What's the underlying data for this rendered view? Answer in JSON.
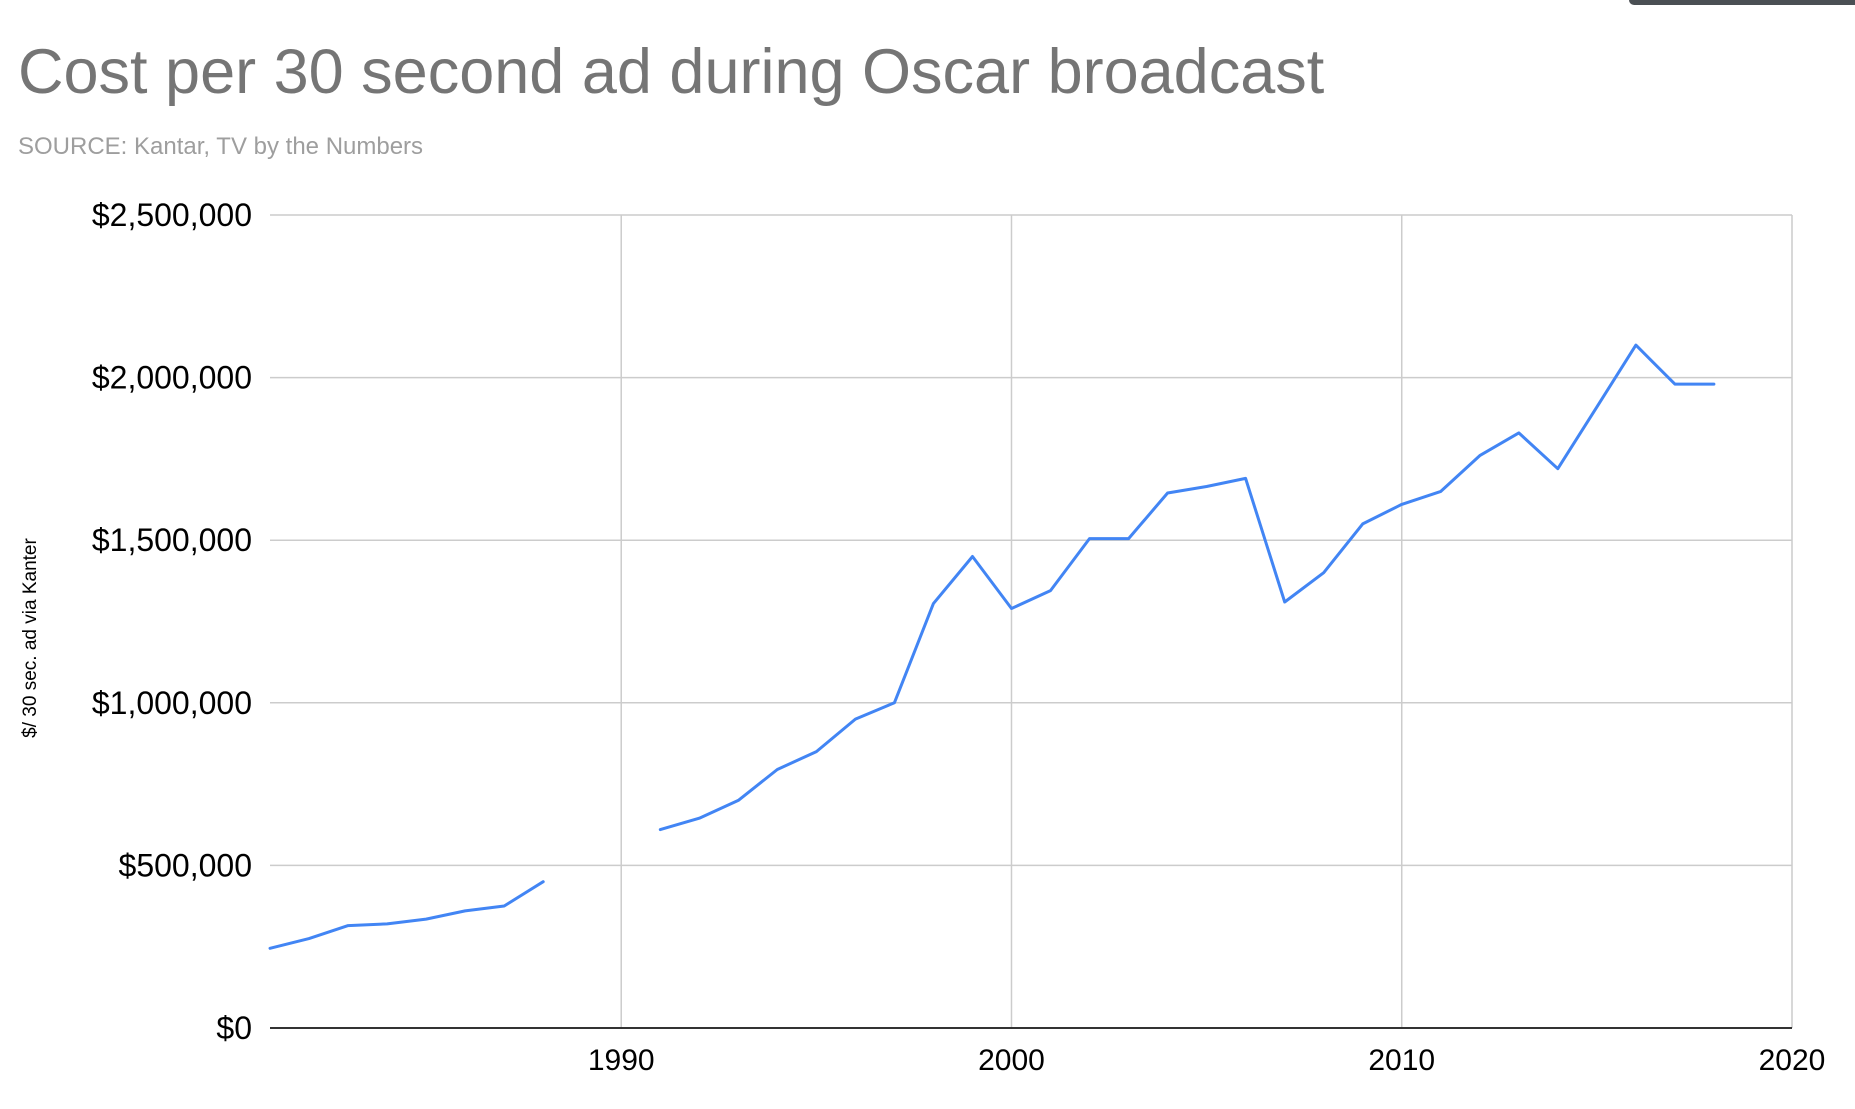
{
  "chart_data": {
    "type": "line",
    "title": "Cost per 30 second ad during Oscar broadcast",
    "subtitle": "SOURCE: Kantar, TV by the Numbers",
    "xlabel": "",
    "ylabel": "$/ 30 sec. ad via Kanter",
    "xlim": [
      1981,
      2020
    ],
    "ylim": [
      0,
      2500000
    ],
    "x_ticks": [
      {
        "value": 1990,
        "label": "1990"
      },
      {
        "value": 2000,
        "label": "2000"
      },
      {
        "value": 2010,
        "label": "2010"
      },
      {
        "value": 2020,
        "label": "2020"
      }
    ],
    "y_ticks": [
      {
        "value": 0,
        "label": "$0"
      },
      {
        "value": 500000,
        "label": "$500,000"
      },
      {
        "value": 1000000,
        "label": "$1,000,000"
      },
      {
        "value": 1500000,
        "label": "$1,500,000"
      },
      {
        "value": 2000000,
        "label": "$2,000,000"
      },
      {
        "value": 2500000,
        "label": "$2,500,000"
      }
    ],
    "grid": true,
    "legend": "none",
    "series": [
      {
        "color": "#4285f4",
        "points": [
          {
            "x": 1981,
            "y": 245000
          },
          {
            "x": 1982,
            "y": 275000
          },
          {
            "x": 1983,
            "y": 315000
          },
          {
            "x": 1984,
            "y": 320000
          },
          {
            "x": 1985,
            "y": 335000
          },
          {
            "x": 1986,
            "y": 360000
          },
          {
            "x": 1987,
            "y": 375000
          },
          {
            "x": 1988,
            "y": 450000
          },
          {
            "x": 1989,
            "y": null
          },
          {
            "x": 1990,
            "y": null
          },
          {
            "x": 1991,
            "y": 610000
          },
          {
            "x": 1992,
            "y": 645000
          },
          {
            "x": 1993,
            "y": 700000
          },
          {
            "x": 1994,
            "y": 795000
          },
          {
            "x": 1995,
            "y": 850000
          },
          {
            "x": 1996,
            "y": 950000
          },
          {
            "x": 1997,
            "y": 1000000
          },
          {
            "x": 1998,
            "y": 1305000
          },
          {
            "x": 1999,
            "y": 1450000
          },
          {
            "x": 2000,
            "y": 1290000
          },
          {
            "x": 2001,
            "y": 1345000
          },
          {
            "x": 2002,
            "y": 1505000
          },
          {
            "x": 2003,
            "y": 1505000
          },
          {
            "x": 2004,
            "y": 1645000
          },
          {
            "x": 2005,
            "y": 1665000
          },
          {
            "x": 2006,
            "y": 1690000
          },
          {
            "x": 2007,
            "y": 1310000
          },
          {
            "x": 2008,
            "y": 1400000
          },
          {
            "x": 2009,
            "y": 1550000
          },
          {
            "x": 2010,
            "y": 1610000
          },
          {
            "x": 2011,
            "y": 1650000
          },
          {
            "x": 2012,
            "y": 1760000
          },
          {
            "x": 2013,
            "y": 1830000
          },
          {
            "x": 2014,
            "y": 1720000
          },
          {
            "x": 2015,
            "y": 1910000
          },
          {
            "x": 2016,
            "y": 2100000
          },
          {
            "x": 2017,
            "y": 1980000
          },
          {
            "x": 2018,
            "y": 1980000
          }
        ]
      }
    ]
  }
}
